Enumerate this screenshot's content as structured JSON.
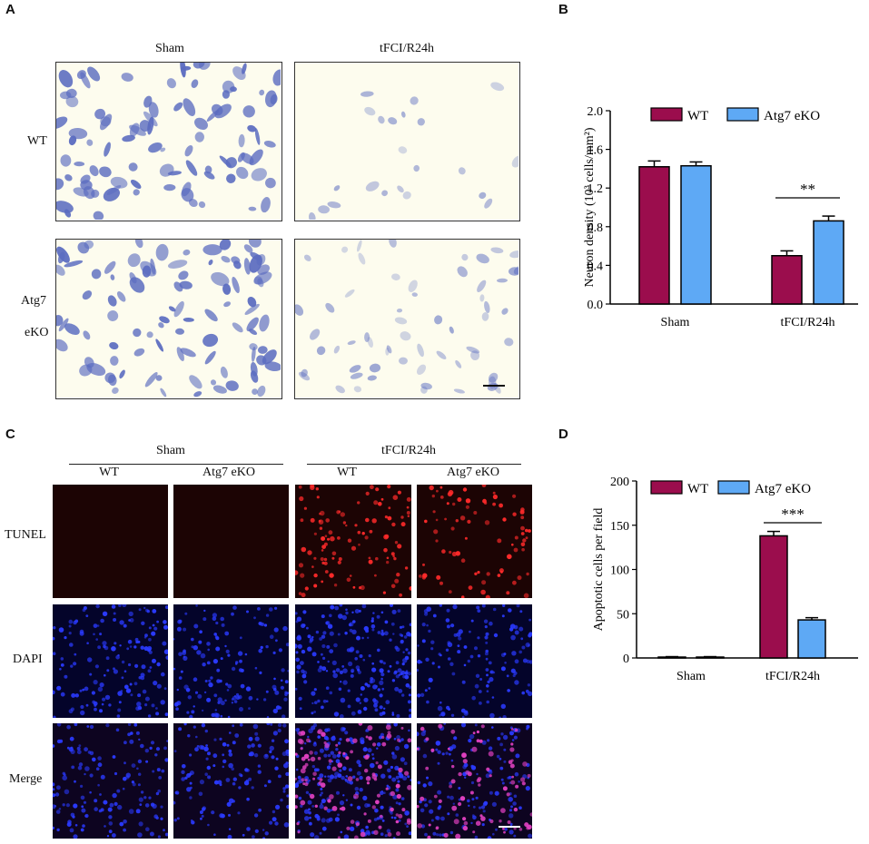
{
  "panel_letters": {
    "a": "A",
    "b": "B",
    "c": "C",
    "d": "D"
  },
  "panel_a": {
    "col_labels": [
      "Sham",
      "tFCI/R24h"
    ],
    "row_labels": [
      "WT",
      "Atg7",
      "eKO"
    ]
  },
  "panel_c": {
    "group_labels": [
      "Sham",
      "tFCI/R24h"
    ],
    "col_labels": [
      "WT",
      "Atg7 eKO",
      "WT",
      "Atg7 eKO"
    ],
    "row_labels": [
      "TUNEL",
      "DAPI",
      "Merge"
    ]
  },
  "colors": {
    "wt": "#9b0d4d",
    "eko": "#5ea9f5",
    "stain": "#5b6cc0",
    "tunel": "#ff2a2a",
    "dapi": "#2a3aff",
    "merge": "#e040c0"
  },
  "chart_data": [
    {
      "type": "bar",
      "categories": [
        "Sham",
        "tFCI/R24h"
      ],
      "series": [
        {
          "name": "WT",
          "values": [
            1.42,
            0.5
          ],
          "errors": [
            0.06,
            0.05
          ]
        },
        {
          "name": "Atg7 eKO",
          "values": [
            1.43,
            0.86
          ],
          "errors": [
            0.04,
            0.05
          ]
        }
      ],
      "ylabel": "Neuron density (10³ cells/mm²)",
      "ylim": [
        0,
        2.0
      ],
      "yticks": [
        "0.0",
        "0.4",
        "0.8",
        "1.2",
        "1.6",
        "2.0"
      ],
      "significance": "**",
      "legend": "top"
    },
    {
      "type": "bar",
      "categories": [
        "Sham",
        "tFCI/R24h"
      ],
      "series": [
        {
          "name": "WT",
          "values": [
            1,
            138
          ],
          "errors": [
            0.5,
            5
          ]
        },
        {
          "name": "Atg7 eKO",
          "values": [
            1,
            43
          ],
          "errors": [
            0.5,
            2.5
          ]
        }
      ],
      "ylabel": "Apoptotic cells per field",
      "ylim": [
        0,
        200
      ],
      "yticks": [
        "0",
        "50",
        "100",
        "150",
        "200"
      ],
      "significance": "***",
      "legend": "top"
    }
  ]
}
